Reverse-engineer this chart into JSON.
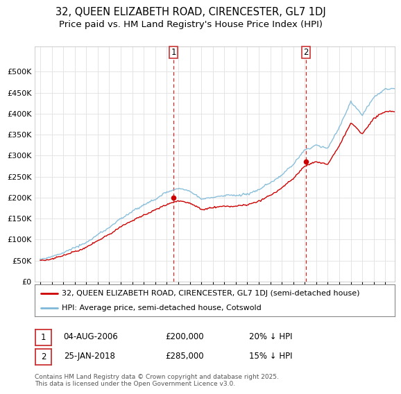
{
  "title_line1": "32, QUEEN ELIZABETH ROAD, CIRENCESTER, GL7 1DJ",
  "title_line2": "Price paid vs. HM Land Registry's House Price Index (HPI)",
  "legend_line1": "32, QUEEN ELIZABETH ROAD, CIRENCESTER, GL7 1DJ (semi-detached house)",
  "legend_line2": "HPI: Average price, semi-detached house, Cotswold",
  "footnote": "Contains HM Land Registry data © Crown copyright and database right 2025.\nThis data is licensed under the Open Government Licence v3.0.",
  "sale1_date": "04-AUG-2006",
  "sale1_price": 200000,
  "sale1_label": "20% ↓ HPI",
  "sale2_date": "25-JAN-2018",
  "sale2_price": 285000,
  "sale2_label": "15% ↓ HPI",
  "ylim": [
    0,
    560000
  ],
  "yticks": [
    0,
    50000,
    100000,
    150000,
    200000,
    250000,
    300000,
    350000,
    400000,
    450000,
    500000
  ],
  "color_hpi": "#7db8d8",
  "color_price": "#cc0000",
  "color_vline": "#cc0000",
  "background_color": "#ffffff",
  "grid_color": "#e0e0e0",
  "title_fontsize": 10.5,
  "subtitle_fontsize": 9.5,
  "tick_fontsize": 8,
  "legend_fontsize": 8,
  "table_fontsize": 8.5,
  "footnote_fontsize": 6.5,
  "sale1_year": 2006.583,
  "sale2_year": 2018.083,
  "marker1_y": 200000,
  "marker2_y": 285000,
  "xmin": 1994.5,
  "xmax": 2025.8
}
